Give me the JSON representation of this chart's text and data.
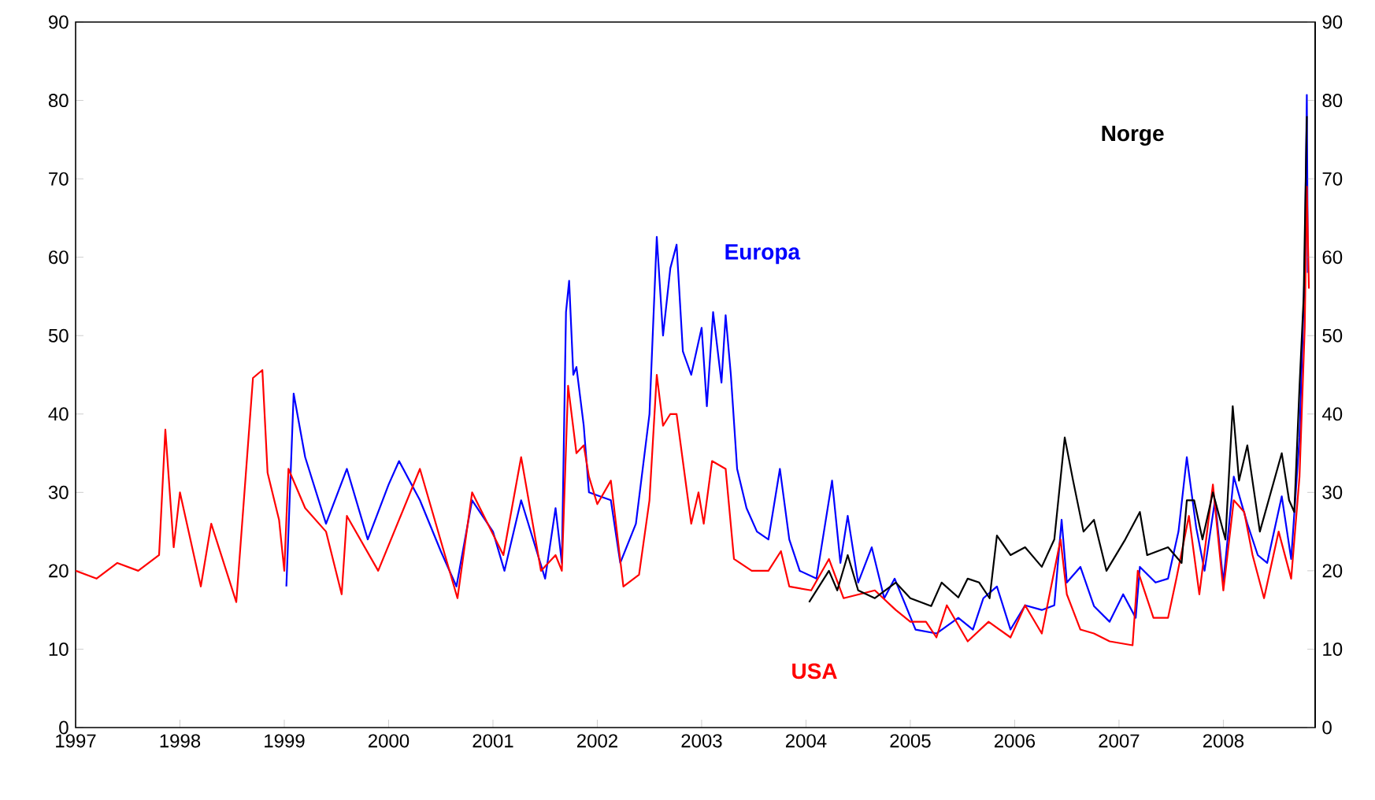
{
  "chart_data": {
    "type": "line",
    "xlim": [
      1997,
      2008.88
    ],
    "xticks": [
      1997,
      1998,
      1999,
      2000,
      2001,
      2002,
      2003,
      2004,
      2005,
      2006,
      2007,
      2008
    ],
    "ylim": [
      0,
      90
    ],
    "yticks": [
      0,
      10,
      20,
      30,
      40,
      50,
      60,
      70,
      80,
      90
    ],
    "y2lim": [
      0,
      90
    ],
    "y2ticks": [
      0,
      10,
      20,
      30,
      40,
      50,
      60,
      70,
      80,
      90
    ],
    "grid": false,
    "legend": false,
    "marker": "none",
    "line_style": "solid",
    "series": [
      {
        "name": "Europa",
        "color": "#0000ff",
        "x": [
          1999.02,
          1999.09,
          1999.2,
          1999.4,
          1999.6,
          1999.8,
          2000.0,
          2000.1,
          2000.3,
          2000.5,
          2000.65,
          2000.8,
          2001.0,
          2001.11,
          2001.27,
          2001.5,
          2001.6,
          2001.66,
          2001.7,
          2001.73,
          2001.77,
          2001.8,
          2001.87,
          2001.92,
          2002.13,
          2002.22,
          2002.37,
          2002.5,
          2002.57,
          2002.63,
          2002.7,
          2002.76,
          2002.82,
          2002.9,
          2003.0,
          2003.05,
          2003.11,
          2003.19,
          2003.23,
          2003.28,
          2003.34,
          2003.43,
          2003.53,
          2003.64,
          2003.75,
          2003.84,
          2003.94,
          2004.1,
          2004.25,
          2004.33,
          2004.4,
          2004.5,
          2004.63,
          2004.75,
          2004.85,
          2005.05,
          2005.25,
          2005.46,
          2005.6,
          2005.7,
          2005.83,
          2005.96,
          2006.1,
          2006.26,
          2006.38,
          2006.45,
          2006.5,
          2006.63,
          2006.76,
          2006.91,
          2007.04,
          2007.16,
          2007.2,
          2007.35,
          2007.47,
          2007.57,
          2007.65,
          2007.74,
          2007.82,
          2007.92,
          2008.0,
          2008.1,
          2008.23,
          2008.33,
          2008.42,
          2008.56,
          2008.65,
          2008.73,
          2008.78,
          2008.8,
          2008.81
        ],
        "values": [
          18,
          42.6,
          34.5,
          26,
          33,
          24,
          31,
          34,
          29,
          22.5,
          18,
          29,
          25,
          20,
          29,
          19,
          28,
          21,
          53,
          57,
          45,
          46,
          38.5,
          30,
          29,
          21,
          26,
          40,
          62.6,
          50,
          58.6,
          61.6,
          48,
          45,
          51,
          41,
          53,
          44,
          52.6,
          45,
          33,
          28,
          25,
          24,
          33,
          24,
          20,
          19,
          31.5,
          21,
          27,
          18.5,
          23,
          16.5,
          19,
          12.5,
          12,
          14,
          12.5,
          16.5,
          18,
          12.5,
          15.6,
          15,
          15.6,
          26.5,
          18.5,
          20.5,
          15.5,
          13.5,
          17,
          14,
          20.5,
          18.5,
          19,
          25,
          34.5,
          25.5,
          20,
          29,
          18.5,
          32,
          26,
          22,
          21,
          29.5,
          21.5,
          37,
          58.6,
          80.7,
          58
        ]
      },
      {
        "name": "USA",
        "color": "#ff0000",
        "x": [
          1997.0,
          1997.2,
          1997.4,
          1997.6,
          1997.8,
          1997.86,
          1997.94,
          1998.0,
          1998.2,
          1998.3,
          1998.54,
          1998.7,
          1998.79,
          1998.84,
          1998.95,
          1999.0,
          1999.04,
          1999.2,
          1999.4,
          1999.55,
          1999.6,
          1999.9,
          2000.3,
          2000.66,
          2000.8,
          2001.1,
          2001.27,
          2001.46,
          2001.6,
          2001.66,
          2001.72,
          2001.8,
          2001.87,
          2001.92,
          2002.0,
          2002.13,
          2002.25,
          2002.4,
          2002.5,
          2002.57,
          2002.63,
          2002.7,
          2002.76,
          2002.82,
          2002.9,
          2002.97,
          2003.02,
          2003.1,
          2003.23,
          2003.31,
          2003.48,
          2003.64,
          2003.76,
          2003.84,
          2004.05,
          2004.22,
          2004.36,
          2004.66,
          2004.86,
          2005.0,
          2005.15,
          2005.25,
          2005.35,
          2005.55,
          2005.75,
          2005.96,
          2006.1,
          2006.26,
          2006.44,
          2006.5,
          2006.63,
          2006.76,
          2006.91,
          2007.13,
          2007.18,
          2007.33,
          2007.47,
          2007.55,
          2007.67,
          2007.77,
          2007.9,
          2008.0,
          2008.1,
          2008.2,
          2008.28,
          2008.39,
          2008.53,
          2008.65,
          2008.73,
          2008.78,
          2008.8,
          2008.82
        ],
        "values": [
          20,
          19,
          21,
          20,
          22,
          38,
          23,
          30,
          18,
          26,
          16,
          44.6,
          45.6,
          32.5,
          26.5,
          20,
          33,
          28,
          25,
          17,
          27,
          20,
          33,
          16.5,
          30,
          22,
          34.5,
          20,
          22,
          20,
          43.6,
          35,
          36,
          32,
          28.5,
          31.5,
          18,
          19.5,
          29,
          45,
          38.5,
          40,
          40,
          34,
          26,
          30,
          26,
          34,
          33,
          21.5,
          20,
          20,
          22.5,
          18,
          17.5,
          21.5,
          16.5,
          17.5,
          15,
          13.5,
          13.5,
          11.5,
          15.6,
          11,
          13.5,
          11.5,
          15.6,
          12,
          24,
          17,
          12.5,
          12,
          11,
          10.5,
          20,
          14,
          14,
          19,
          27,
          17,
          31,
          17.5,
          29,
          27.5,
          22,
          16.5,
          25,
          19,
          32,
          51,
          69,
          56
        ]
      },
      {
        "name": "Norge",
        "color": "#000000",
        "x": [
          2004.03,
          2004.22,
          2004.3,
          2004.4,
          2004.5,
          2004.66,
          2004.86,
          2005.0,
          2005.2,
          2005.3,
          2005.46,
          2005.55,
          2005.66,
          2005.76,
          2005.83,
          2005.96,
          2006.1,
          2006.26,
          2006.38,
          2006.48,
          2006.56,
          2006.66,
          2006.76,
          2006.88,
          2007.06,
          2007.2,
          2007.27,
          2007.47,
          2007.6,
          2007.65,
          2007.72,
          2007.8,
          2007.9,
          2008.02,
          2008.09,
          2008.15,
          2008.23,
          2008.35,
          2008.56,
          2008.63,
          2008.68,
          2008.73,
          2008.77,
          2008.8
        ],
        "values": [
          16,
          20,
          17.5,
          22,
          17.5,
          16.5,
          18.5,
          16.5,
          15.5,
          18.5,
          16.6,
          19,
          18.5,
          16.5,
          24.5,
          22,
          23,
          20.5,
          24,
          37,
          31.5,
          25,
          26.5,
          20,
          24,
          27.5,
          22,
          23,
          21,
          29,
          29,
          24,
          30,
          24,
          41,
          31.5,
          36,
          25,
          35,
          29,
          27.5,
          43.5,
          55,
          78
        ]
      }
    ]
  }
}
